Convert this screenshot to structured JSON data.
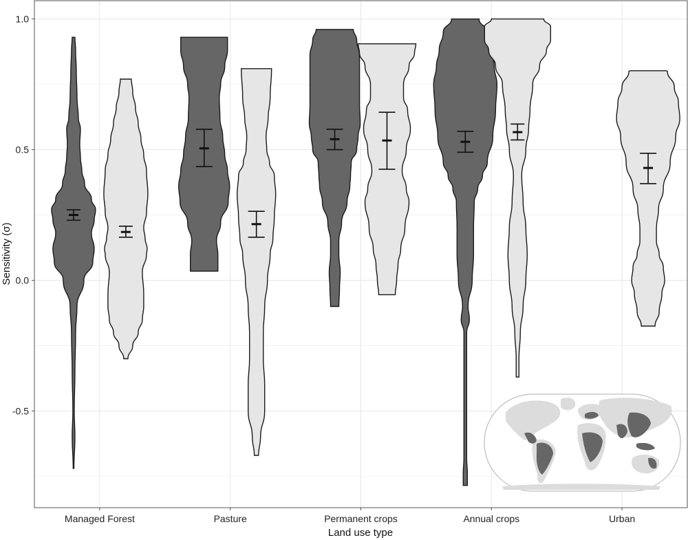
{
  "chart_data": {
    "type": "violin",
    "xlabel": "Land use type",
    "ylabel": "Sensitivity (σ)",
    "ylim": [
      -0.87,
      1.07
    ],
    "yticks": [
      -0.5,
      0.0,
      0.5,
      1.0
    ],
    "ytick_labels": [
      "-0.5",
      "0.0",
      "0.5",
      "1.0"
    ],
    "grid": true,
    "categories": [
      "Managed Forest",
      "Pasture",
      "Permanent crops",
      "Annual crops",
      "Urban"
    ],
    "series": [
      {
        "fill": "#666666",
        "violins": [
          {
            "category": "Managed Forest",
            "median": 0.25,
            "ci": [
              0.23,
              0.27
            ],
            "profile": [
              [
                -0.72,
                0.5
              ],
              [
                -0.6,
                2
              ],
              [
                -0.5,
                1
              ],
              [
                -0.35,
                2
              ],
              [
                -0.2,
                3
              ],
              [
                -0.1,
                5
              ],
              [
                0.0,
                15
              ],
              [
                0.07,
                28
              ],
              [
                0.12,
                30
              ],
              [
                0.18,
                26
              ],
              [
                0.23,
                30
              ],
              [
                0.27,
                32
              ],
              [
                0.31,
                26
              ],
              [
                0.37,
                16
              ],
              [
                0.42,
                12
              ],
              [
                0.47,
                10
              ],
              [
                0.52,
                9
              ],
              [
                0.58,
                10
              ],
              [
                0.62,
                7
              ],
              [
                0.7,
                5
              ],
              [
                0.8,
                4
              ],
              [
                0.88,
                3
              ],
              [
                0.93,
                2
              ]
            ]
          },
          {
            "category": "Pasture",
            "median": 0.505,
            "ci": [
              0.435,
              0.578
            ],
            "profile": [
              [
                0.035,
                20
              ],
              [
                0.1,
                20
              ],
              [
                0.15,
                18
              ],
              [
                0.22,
                24
              ],
              [
                0.3,
                35
              ],
              [
                0.36,
                37
              ],
              [
                0.42,
                34
              ],
              [
                0.48,
                30
              ],
              [
                0.55,
                27
              ],
              [
                0.62,
                23
              ],
              [
                0.7,
                22
              ],
              [
                0.75,
                24
              ],
              [
                0.82,
                30
              ],
              [
                0.88,
                34
              ],
              [
                0.93,
                34
              ]
            ]
          },
          {
            "category": "Permanent crops",
            "median": 0.54,
            "ci": [
              0.5,
              0.578
            ],
            "profile": [
              [
                -0.1,
                6
              ],
              [
                -0.03,
                7
              ],
              [
                0.03,
                8
              ],
              [
                0.1,
                6
              ],
              [
                0.15,
                6
              ],
              [
                0.22,
                10
              ],
              [
                0.3,
                18
              ],
              [
                0.36,
                22
              ],
              [
                0.4,
                23
              ],
              [
                0.45,
                24
              ],
              [
                0.5,
                32
              ],
              [
                0.55,
                34
              ],
              [
                0.6,
                37
              ],
              [
                0.67,
                36
              ],
              [
                0.72,
                36
              ],
              [
                0.78,
                36
              ],
              [
                0.86,
                36
              ],
              [
                0.92,
                32
              ],
              [
                0.96,
                27
              ]
            ]
          },
          {
            "category": "Annual crops",
            "median": 0.53,
            "ci": [
              0.49,
              0.57
            ],
            "profile": [
              [
                -0.785,
                3
              ],
              [
                -0.74,
                3
              ],
              [
                -0.68,
                2
              ],
              [
                -0.5,
                2
              ],
              [
                -0.3,
                2
              ],
              [
                -0.2,
                2
              ],
              [
                -0.15,
                6
              ],
              [
                -0.1,
                4
              ],
              [
                0.0,
                10
              ],
              [
                0.1,
                12
              ],
              [
                0.2,
                12
              ],
              [
                0.3,
                13
              ],
              [
                0.35,
                18
              ],
              [
                0.4,
                25
              ],
              [
                0.45,
                32
              ],
              [
                0.55,
                40
              ],
              [
                0.65,
                44
              ],
              [
                0.75,
                46
              ],
              [
                0.82,
                42
              ],
              [
                0.88,
                38
              ],
              [
                0.95,
                32
              ],
              [
                1.0,
                20
              ]
            ]
          }
        ]
      },
      {
        "fill": "#e6e6e6",
        "violins": [
          {
            "category": "Managed Forest",
            "median": 0.185,
            "ci": [
              0.165,
              0.207
            ],
            "profile": [
              [
                -0.3,
                3
              ],
              [
                -0.25,
                10
              ],
              [
                -0.2,
                18
              ],
              [
                -0.15,
                24
              ],
              [
                -0.1,
                26
              ],
              [
                -0.05,
                26
              ],
              [
                0.03,
                24
              ],
              [
                0.1,
                30
              ],
              [
                0.12,
                31
              ],
              [
                0.16,
                28
              ],
              [
                0.2,
                26
              ],
              [
                0.26,
                30
              ],
              [
                0.33,
                32
              ],
              [
                0.42,
                30
              ],
              [
                0.48,
                26
              ],
              [
                0.54,
                22
              ],
              [
                0.6,
                18
              ],
              [
                0.66,
                14
              ],
              [
                0.72,
                10
              ],
              [
                0.77,
                8
              ]
            ]
          },
          {
            "category": "Pasture",
            "median": 0.215,
            "ci": [
              0.165,
              0.264
            ],
            "profile": [
              [
                -0.67,
                3
              ],
              [
                -0.6,
                6
              ],
              [
                -0.5,
                12
              ],
              [
                -0.4,
                12
              ],
              [
                -0.3,
                10
              ],
              [
                -0.2,
                10
              ],
              [
                -0.1,
                12
              ],
              [
                0.0,
                16
              ],
              [
                0.1,
                20
              ],
              [
                0.16,
                24
              ],
              [
                0.24,
                26
              ],
              [
                0.33,
                28
              ],
              [
                0.4,
                26
              ],
              [
                0.45,
                19
              ],
              [
                0.5,
                15
              ],
              [
                0.55,
                14
              ],
              [
                0.62,
                17
              ],
              [
                0.7,
                20
              ],
              [
                0.81,
                22
              ]
            ]
          },
          {
            "category": "Permanent crops",
            "median": 0.535,
            "ci": [
              0.425,
              0.643
            ],
            "profile": [
              [
                -0.055,
                12
              ],
              [
                0.0,
                14
              ],
              [
                0.06,
                16
              ],
              [
                0.12,
                20
              ],
              [
                0.2,
                26
              ],
              [
                0.3,
                32
              ],
              [
                0.35,
                28
              ],
              [
                0.42,
                22
              ],
              [
                0.5,
                28
              ],
              [
                0.58,
                34
              ],
              [
                0.65,
                30
              ],
              [
                0.7,
                24
              ],
              [
                0.75,
                24
              ],
              [
                0.82,
                32
              ],
              [
                0.87,
                40
              ],
              [
                0.905,
                42
              ]
            ]
          },
          {
            "category": "Annual crops",
            "median": 0.567,
            "ci": [
              0.537,
              0.598
            ],
            "profile": [
              [
                -0.37,
                2
              ],
              [
                -0.3,
                2
              ],
              [
                -0.2,
                4
              ],
              [
                -0.1,
                8
              ],
              [
                0.0,
                12
              ],
              [
                0.1,
                14
              ],
              [
                0.2,
                12
              ],
              [
                0.3,
                8
              ],
              [
                0.4,
                6
              ],
              [
                0.5,
                12
              ],
              [
                0.58,
                16
              ],
              [
                0.65,
                18
              ],
              [
                0.75,
                22
              ],
              [
                0.82,
                32
              ],
              [
                0.88,
                42
              ],
              [
                0.92,
                48
              ],
              [
                0.97,
                48
              ],
              [
                1.0,
                38
              ]
            ]
          },
          {
            "category": "Urban",
            "median": 0.43,
            "ci": [
              0.37,
              0.486
            ],
            "profile": [
              [
                -0.175,
                10
              ],
              [
                -0.12,
                16
              ],
              [
                -0.05,
                20
              ],
              [
                0.0,
                24
              ],
              [
                0.05,
                22
              ],
              [
                0.1,
                16
              ],
              [
                0.15,
                12
              ],
              [
                0.2,
                12
              ],
              [
                0.27,
                15
              ],
              [
                0.35,
                22
              ],
              [
                0.45,
                32
              ],
              [
                0.55,
                40
              ],
              [
                0.62,
                46
              ],
              [
                0.68,
                44
              ],
              [
                0.74,
                38
              ],
              [
                0.8,
                28
              ],
              [
                0.802,
                26
              ]
            ]
          }
        ]
      }
    ]
  },
  "inset": {
    "name": "world-map",
    "colors": {
      "land": "#dcdcdc",
      "highlight": "#666666",
      "ocean": "#ffffff",
      "border": "#bdbdbd"
    }
  }
}
